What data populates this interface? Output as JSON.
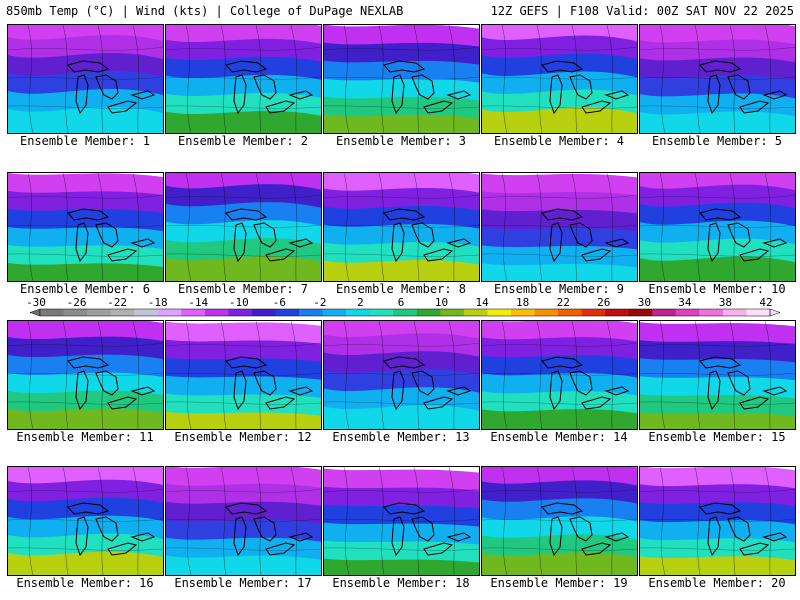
{
  "header": {
    "left": "850mb Temp (°C) | Wind (kts) | College of DuPage NEXLAB",
    "right": "12Z GEFS | F108 Valid: 00Z SAT NOV 22 2025"
  },
  "panels": [
    {
      "label": "Ensemble Member: 1"
    },
    {
      "label": "Ensemble Member: 2"
    },
    {
      "label": "Ensemble Member: 3"
    },
    {
      "label": "Ensemble Member: 4"
    },
    {
      "label": "Ensemble Member: 5"
    },
    {
      "label": "Ensemble Member: 6"
    },
    {
      "label": "Ensemble Member: 7"
    },
    {
      "label": "Ensemble Member: 8"
    },
    {
      "label": "Ensemble Member: 9"
    },
    {
      "label": "Ensemble Member: 10"
    },
    {
      "label": "Ensemble Member: 11"
    },
    {
      "label": "Ensemble Member: 12"
    },
    {
      "label": "Ensemble Member: 13"
    },
    {
      "label": "Ensemble Member: 14"
    },
    {
      "label": "Ensemble Member: 15"
    },
    {
      "label": "Ensemble Member: 16"
    },
    {
      "label": "Ensemble Member: 17"
    },
    {
      "label": "Ensemble Member: 18"
    },
    {
      "label": "Ensemble Member: 19"
    },
    {
      "label": "Ensemble Member: 20"
    }
  ],
  "colorbar": {
    "tick_labels": [
      "-30",
      "-26",
      "-22",
      "-18",
      "-14",
      "-10",
      "-6",
      "-2",
      "2",
      "6",
      "10",
      "14",
      "18",
      "22",
      "26",
      "30",
      "34",
      "38",
      "42"
    ],
    "colors": [
      "#7a7a7a",
      "#8c8c8c",
      "#9e9e9e",
      "#b0b0b0",
      "#c4c4d8",
      "#e0a0ff",
      "#e060ff",
      "#c030f0",
      "#8020e0",
      "#4020c8",
      "#2040e0",
      "#1880f0",
      "#10b0f0",
      "#10d8e8",
      "#20e0c0",
      "#20c880",
      "#30a830",
      "#70b820",
      "#b8d010",
      "#f0f000",
      "#f8c000",
      "#f89000",
      "#f06000",
      "#e03010",
      "#c01010",
      "#980808",
      "#c02090",
      "#e040c0",
      "#f070e0",
      "#f8b0f0",
      "#fce0fa"
    ]
  }
}
